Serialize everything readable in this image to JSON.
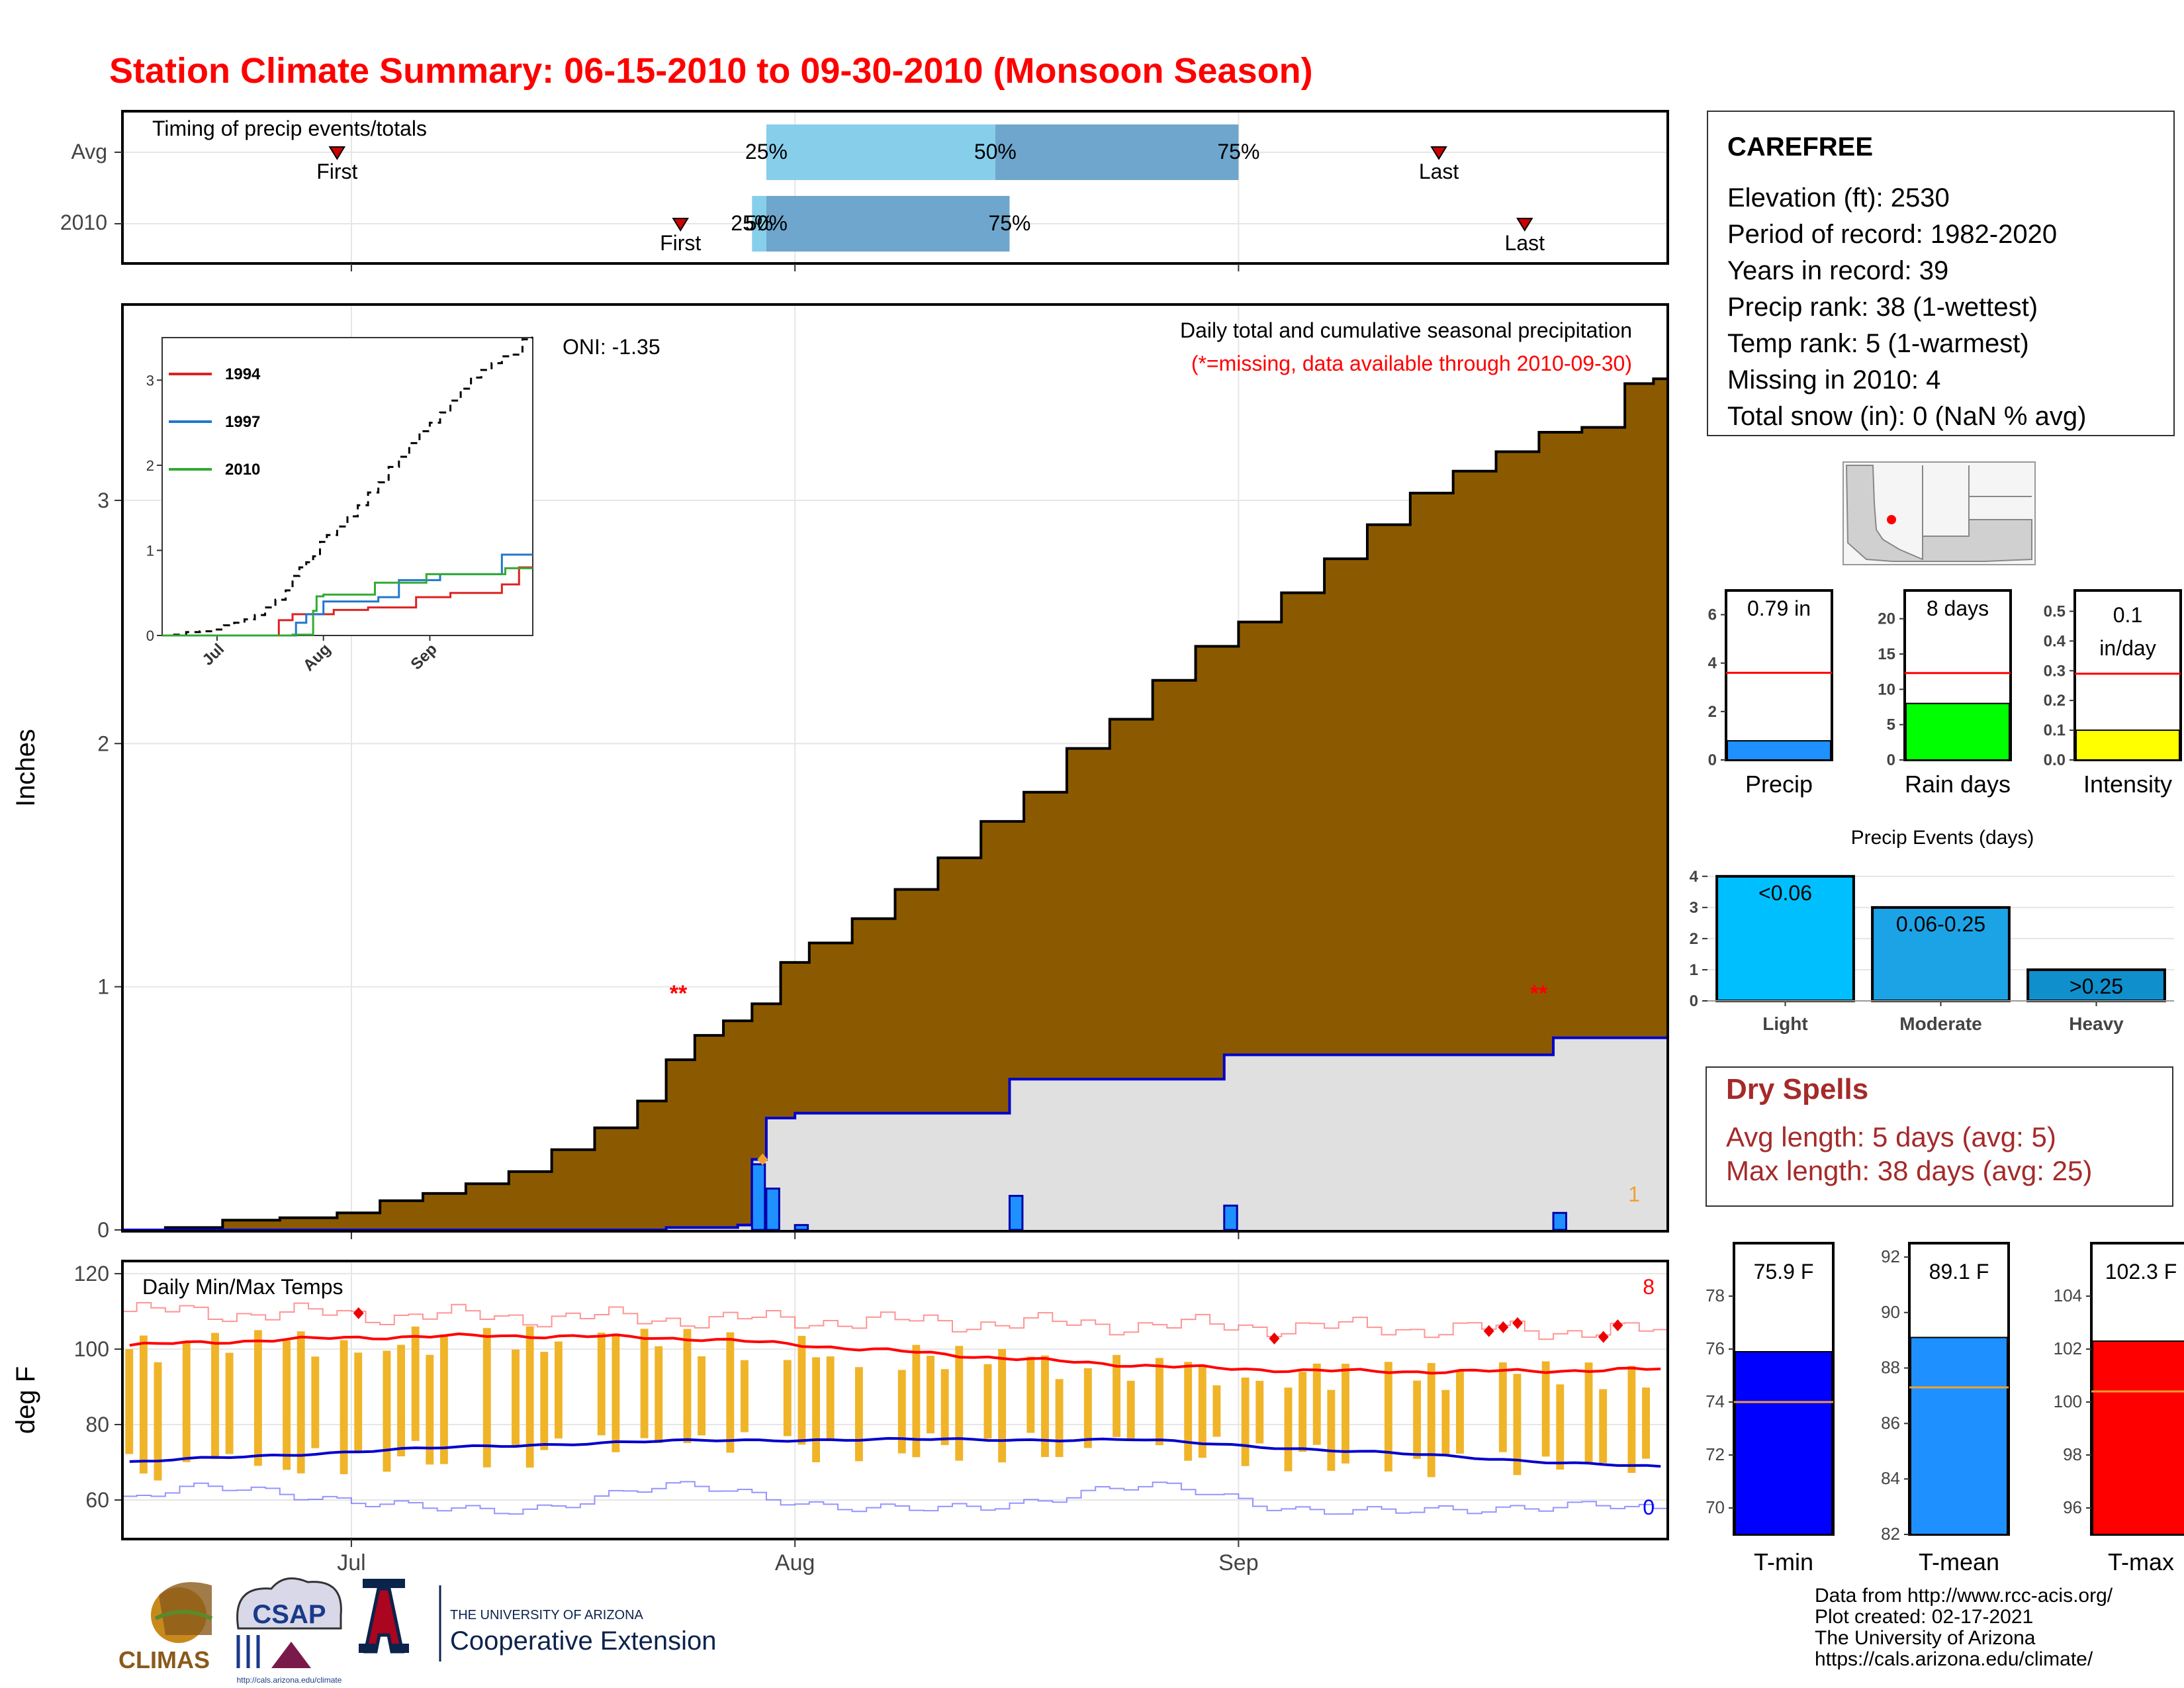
{
  "title": "Station Climate Summary: 06-15-2010 to 09-30-2010 (Monsoon Season)",
  "colors": {
    "title": "#ff0000",
    "cumulative_fill": "#8b5a00",
    "avg_fill": "#e0e0e0",
    "daily_bar": "#1e90ff",
    "quartile_light": "#87ceeb",
    "quartile_dark": "#6ea6cd",
    "temp_bar": "#f0b429",
    "tmax_line": "#ff0000",
    "tmin_line": "#0000cc",
    "dry_spell": "#a52a2a"
  },
  "timing": {
    "title": "Timing of precip events/totals",
    "rows": [
      "Avg",
      "2010"
    ],
    "first_label": "First",
    "last_label": "Last",
    "avg": {
      "first": "2010-06-30",
      "p25": "2010-07-30",
      "p50": "2010-08-15",
      "p75": "2010-09-01",
      "last": "2010-09-15"
    },
    "y2010": {
      "first": "2010-07-24",
      "p25": "2010-07-29",
      "p50": "2010-07-30",
      "p75": "2010-08-16",
      "last": "2010-09-21"
    },
    "p25_label": "25%",
    "p50_label": "50%",
    "p75_label": "75%"
  },
  "precip": {
    "ylabel": "Inches",
    "yticks": [
      "0",
      "1",
      "2",
      "3"
    ],
    "note1": "Daily total and cumulative seasonal precipitation",
    "note2": "(*=missing, data available through 2010-09-30)",
    "oni": "ONI: -1.35",
    "missing_marks": [
      {
        "date": "2010-07-25",
        "text": "**"
      },
      {
        "date": "2010-09-22",
        "text": "**"
      }
    ],
    "corner_count": "1"
  },
  "inset": {
    "yticks": [
      "0",
      "1",
      "2",
      "3"
    ],
    "xticks": [
      "Jul",
      "Aug",
      "Sep"
    ],
    "legend": [
      {
        "name": "1994",
        "color": "#dd2222"
      },
      {
        "name": "1997",
        "color": "#2277cc"
      },
      {
        "name": "2010",
        "color": "#33aa33"
      }
    ]
  },
  "temps": {
    "ylabel": "deg F",
    "title": "Daily Min/Max Temps",
    "yticks": [
      "60",
      "80",
      "100",
      "120"
    ],
    "count_high": "8",
    "count_low": "0",
    "xticks": [
      "Jul",
      "Aug",
      "Sep"
    ]
  },
  "station": {
    "name": "CAREFREE",
    "lines": [
      "Elevation (ft): 2530",
      "Period of record: 1982-2020",
      "Years in record: 39",
      "Precip rank: 38 (1-wettest)",
      "Temp rank: 5 (1-warmest)",
      "Missing in 2010: 4",
      "Total snow (in): 0 (NaN % avg)"
    ]
  },
  "mini_bars": [
    {
      "label": "Precip",
      "value_text": "0.79 in",
      "value": 0.79,
      "avg": 3.6,
      "ymax": 7,
      "ticks": [
        "0",
        "2",
        "4",
        "6"
      ],
      "tick_vals": [
        0,
        2,
        4,
        6
      ],
      "color": "#1e90ff"
    },
    {
      "label": "Rain days",
      "value_text": "8 days",
      "value": 8,
      "avg": 12.3,
      "ymax": 24,
      "ticks": [
        "0",
        "5",
        "10",
        "15",
        "20"
      ],
      "tick_vals": [
        0,
        5,
        10,
        15,
        20
      ],
      "color": "#00ff00"
    },
    {
      "label": "Intensity",
      "value_text": "0.1 in/day",
      "value_lines": [
        "0.1",
        "in/day"
      ],
      "value": 0.1,
      "avg": 0.29,
      "ymax": 0.57,
      "ticks": [
        "0.0",
        "0.1",
        "0.2",
        "0.3",
        "0.4",
        "0.5"
      ],
      "tick_vals": [
        0,
        0.1,
        0.2,
        0.3,
        0.4,
        0.5
      ],
      "color": "#ffff00"
    }
  ],
  "events": {
    "title": "Precip Events (days)",
    "categories": [
      "Light",
      "Moderate",
      "Heavy"
    ],
    "bar_labels": [
      "<0.06",
      "0.06-0.25",
      ">0.25"
    ],
    "values": [
      4,
      3,
      1
    ],
    "colors": [
      "#00bfff",
      "#1ca3e6",
      "#0f8fcc"
    ],
    "yticks": [
      "0",
      "1",
      "2",
      "3",
      "4"
    ]
  },
  "dry_spells": {
    "title": "Dry Spells",
    "avg_length": "Avg length: 5 days (avg: 5)",
    "max_length": "Max length: 38 days (avg: 25)"
  },
  "temp_bars": [
    {
      "label": "T-min",
      "value_text": "75.9 F",
      "value": 75.9,
      "avg": 74.0,
      "ymin": 69,
      "ymax": 80,
      "ticks": [
        "70",
        "72",
        "74",
        "76",
        "78"
      ],
      "tick_vals": [
        70,
        72,
        74,
        76,
        78
      ],
      "color": "#0000ff"
    },
    {
      "label": "T-mean",
      "value_text": "89.1 F",
      "value": 89.1,
      "avg": 87.3,
      "ymin": 82,
      "ymax": 92.5,
      "ticks": [
        "82",
        "84",
        "86",
        "88",
        "90",
        "92"
      ],
      "tick_vals": [
        82,
        84,
        86,
        88,
        90,
        92
      ],
      "color": "#1e90ff"
    },
    {
      "label": "T-max",
      "value_text": "102.3 F",
      "value": 102.3,
      "avg": 100.4,
      "ymin": 95,
      "ymax": 106,
      "ticks": [
        "96",
        "98",
        "100",
        "102",
        "104"
      ],
      "tick_vals": [
        96,
        98,
        100,
        102,
        104
      ],
      "color": "#ff0000"
    }
  ],
  "footer": {
    "lines": [
      "Data from http://www.rcc-acis.org/",
      "Plot created: 02-17-2021",
      "The University of Arizona",
      "https://cals.arizona.edu/climate/"
    ],
    "climas": "CLIMAS",
    "csap": "CSAP",
    "csap_url": "http://cals.arizona.edu/climate",
    "ua_top": "THE UNIVERSITY OF ARIZONA",
    "ua_bottom": "Cooperative Extension"
  },
  "chart_data": {
    "type": "area",
    "title": "Daily total and cumulative seasonal precipitation",
    "xlabel": "",
    "ylabel": "Inches",
    "xlim": [
      "2010-06-15",
      "2010-09-30"
    ],
    "ylim": [
      0,
      3.8
    ],
    "x_ticks": [
      "Jul",
      "Aug",
      "Sep"
    ],
    "series": [
      {
        "name": "avg cumulative",
        "x": [
          "2010-06-15",
          "2010-06-18",
          "2010-06-22",
          "2010-06-26",
          "2010-06-30",
          "2010-07-03",
          "2010-07-06",
          "2010-07-09",
          "2010-07-12",
          "2010-07-15",
          "2010-07-18",
          "2010-07-21",
          "2010-07-23",
          "2010-07-25",
          "2010-07-27",
          "2010-07-29",
          "2010-07-31",
          "2010-08-02",
          "2010-08-05",
          "2010-08-08",
          "2010-08-11",
          "2010-08-14",
          "2010-08-17",
          "2010-08-20",
          "2010-08-23",
          "2010-08-26",
          "2010-08-29",
          "2010-09-01",
          "2010-09-04",
          "2010-09-07",
          "2010-09-10",
          "2010-09-13",
          "2010-09-16",
          "2010-09-19",
          "2010-09-22",
          "2010-09-25",
          "2010-09-28",
          "2010-09-30"
        ],
        "values": [
          0.0,
          0.01,
          0.04,
          0.05,
          0.07,
          0.12,
          0.15,
          0.19,
          0.24,
          0.33,
          0.42,
          0.53,
          0.7,
          0.8,
          0.86,
          0.93,
          1.1,
          1.18,
          1.28,
          1.4,
          1.53,
          1.68,
          1.8,
          1.98,
          2.1,
          2.26,
          2.4,
          2.5,
          2.62,
          2.76,
          2.9,
          3.03,
          3.12,
          3.2,
          3.28,
          3.3,
          3.48,
          3.5
        ]
      },
      {
        "name": "2010 cumulative",
        "x": [
          "2010-06-15",
          "2010-07-23",
          "2010-07-28",
          "2010-07-29",
          "2010-07-30",
          "2010-08-01",
          "2010-08-15",
          "2010-08-16",
          "2010-08-30",
          "2010-08-31",
          "2010-09-22",
          "2010-09-23",
          "2010-09-30"
        ],
        "values": [
          0.0,
          0.01,
          0.02,
          0.29,
          0.46,
          0.48,
          0.48,
          0.62,
          0.62,
          0.72,
          0.72,
          0.79,
          0.79
        ]
      },
      {
        "name": "2010 daily",
        "x": [
          "2010-07-29",
          "2010-07-30",
          "2010-08-01",
          "2010-08-16",
          "2010-08-31",
          "2010-09-23"
        ],
        "values": [
          0.27,
          0.17,
          0.02,
          0.14,
          0.1,
          0.07
        ]
      }
    ]
  }
}
